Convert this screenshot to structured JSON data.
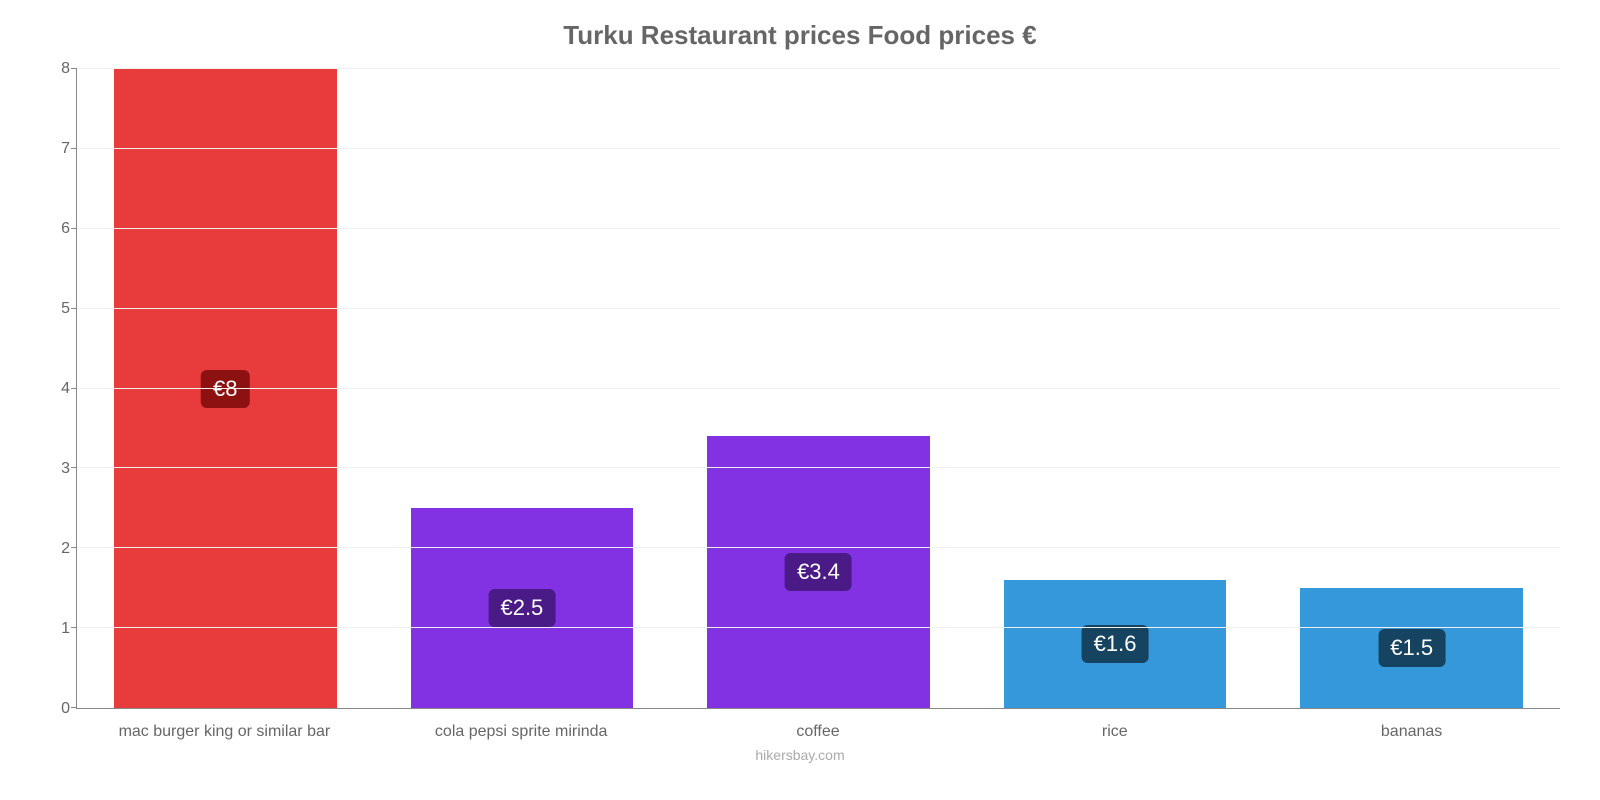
{
  "chart": {
    "type": "bar",
    "title": "Turku Restaurant prices Food prices €",
    "title_color": "#666666",
    "title_fontsize": 26,
    "background_color": "#ffffff",
    "grid_color": "#f0f0f0",
    "axis_color": "#888888",
    "tick_label_color": "#666666",
    "tick_fontsize": 16,
    "ylim": [
      0,
      8
    ],
    "yticks": [
      0,
      1,
      2,
      3,
      4,
      5,
      6,
      7,
      8
    ],
    "bar_width_pct": 75,
    "footer": "hikersbay.com",
    "footer_color": "#aaaaaa",
    "categories": [
      "mac burger king or similar bar",
      "cola pepsi sprite mirinda",
      "coffee",
      "rice",
      "bananas"
    ],
    "values": [
      8,
      2.5,
      3.4,
      1.6,
      1.5
    ],
    "value_labels": [
      "€8",
      "€2.5",
      "€3.4",
      "€1.6",
      "€1.5"
    ],
    "bar_colors": [
      "#e83b3b",
      "#8232e2",
      "#8232e2",
      "#3498db",
      "#3498db"
    ],
    "pill_colors": [
      "#8e1111",
      "#4a1b87",
      "#4a1b87",
      "#154360",
      "#154360"
    ],
    "pill_fontsize": 22,
    "pill_text_color": "#ffffff"
  }
}
